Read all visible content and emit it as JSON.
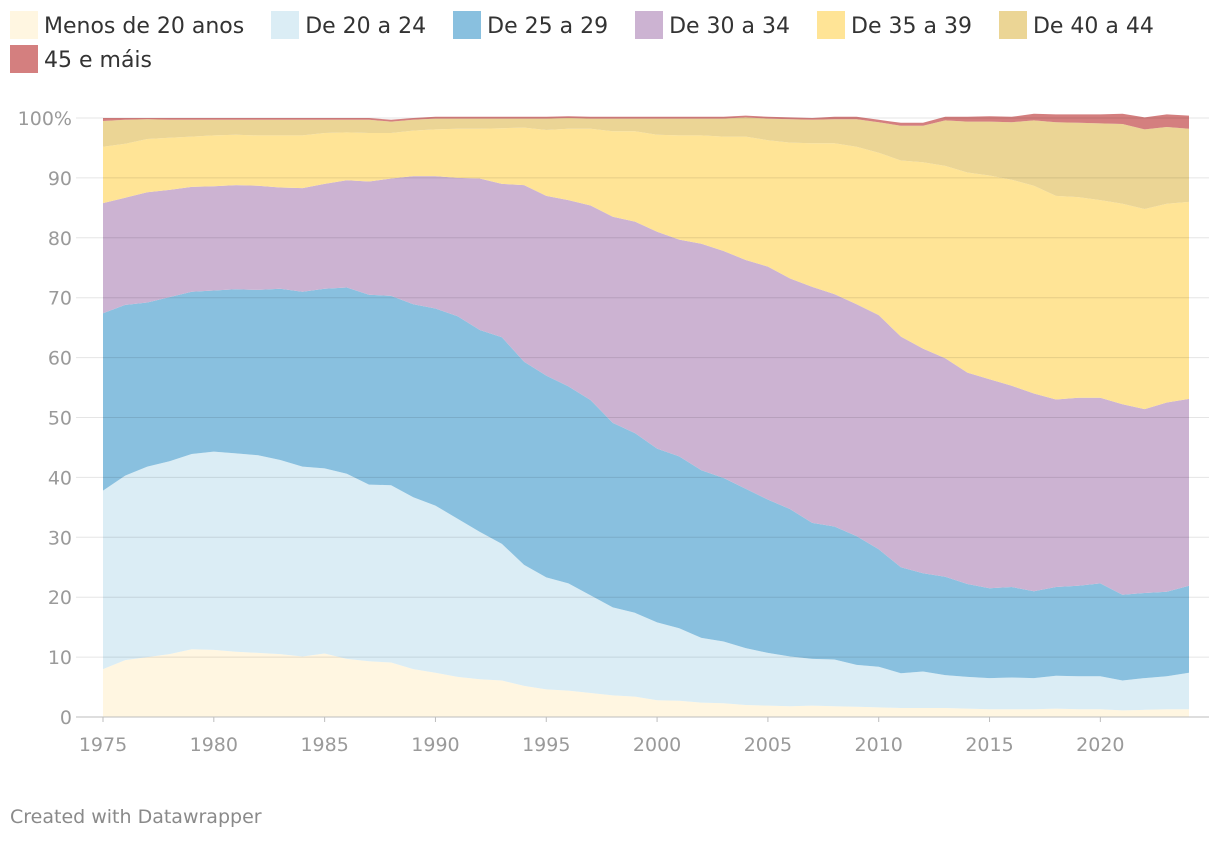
{
  "chart_data": {
    "type": "area",
    "stacked": true,
    "percent": true,
    "title": "",
    "xlabel": "",
    "ylabel": "",
    "ylim": [
      0,
      100
    ],
    "yticks": [
      0,
      10,
      20,
      30,
      40,
      50,
      60,
      70,
      80,
      90,
      100
    ],
    "ytick_labels": [
      "0",
      "10",
      "20",
      "30",
      "40",
      "50",
      "60",
      "70",
      "80",
      "90",
      "100%"
    ],
    "xticks": [
      1975,
      1980,
      1985,
      1990,
      1995,
      2000,
      2005,
      2010,
      2015,
      2020
    ],
    "xtick_labels": [
      "1975",
      "1980",
      "1985",
      "1990",
      "1995",
      "2000",
      "2005",
      "2010",
      "2015",
      "2020"
    ],
    "x": [
      1975,
      1976,
      1977,
      1978,
      1979,
      1980,
      1981,
      1982,
      1983,
      1984,
      1985,
      1986,
      1987,
      1988,
      1989,
      1990,
      1991,
      1992,
      1993,
      1994,
      1995,
      1996,
      1997,
      1998,
      1999,
      2000,
      2001,
      2002,
      2003,
      2004,
      2005,
      2006,
      2007,
      2008,
      2009,
      2010,
      2011,
      2012,
      2013,
      2014,
      2015,
      2016,
      2017,
      2018,
      2019,
      2020,
      2021,
      2022,
      2023,
      2024
    ],
    "series": [
      {
        "name": "Menos de 20 anos",
        "color": "#fff6e1",
        "values": [
          8.0,
          9.5,
          10.0,
          10.5,
          11.3,
          11.2,
          10.9,
          10.7,
          10.5,
          10.1,
          10.6,
          9.7,
          9.3,
          9.1,
          8.0,
          7.4,
          6.7,
          6.3,
          6.1,
          5.2,
          4.6,
          4.4,
          4.0,
          3.6,
          3.4,
          2.8,
          2.7,
          2.4,
          2.3,
          2.0,
          1.9,
          1.8,
          1.9,
          1.8,
          1.7,
          1.6,
          1.5,
          1.5,
          1.5,
          1.4,
          1.3,
          1.3,
          1.3,
          1.4,
          1.3,
          1.3,
          1.1,
          1.2,
          1.3,
          1.3
        ]
      },
      {
        "name": "De 20 a 24",
        "color": "#dbedf5",
        "values": [
          29.8,
          30.8,
          31.8,
          32.2,
          32.6,
          33.1,
          33.1,
          33.0,
          32.4,
          31.7,
          30.9,
          30.9,
          29.5,
          29.6,
          28.7,
          27.9,
          26.4,
          24.6,
          22.8,
          20.2,
          18.7,
          17.9,
          16.3,
          14.7,
          14.0,
          13.0,
          12.1,
          10.8,
          10.3,
          9.5,
          8.8,
          8.3,
          7.8,
          7.8,
          7.0,
          6.8,
          5.8,
          6.1,
          5.5,
          5.3,
          5.2,
          5.3,
          5.2,
          5.5,
          5.5,
          5.5,
          5.0,
          5.3,
          5.5,
          6.1
        ]
      },
      {
        "name": "De 25 a 29",
        "color": "#89c0df",
        "values": [
          29.6,
          28.5,
          27.4,
          27.4,
          27.1,
          26.9,
          27.4,
          27.6,
          28.6,
          29.2,
          30.0,
          31.1,
          31.7,
          31.6,
          32.2,
          32.9,
          33.8,
          33.7,
          34.5,
          33.9,
          33.7,
          32.9,
          32.6,
          30.8,
          30.0,
          29.0,
          28.7,
          28.0,
          27.3,
          26.6,
          25.6,
          24.6,
          22.7,
          22.2,
          21.5,
          19.6,
          17.7,
          16.4,
          16.4,
          15.5,
          15.0,
          15.1,
          14.5,
          14.8,
          15.1,
          15.5,
          14.3,
          14.2,
          14.1,
          14.5
        ]
      },
      {
        "name": "De 30 a 34",
        "color": "#ccb3d2",
        "values": [
          18.4,
          17.9,
          18.4,
          17.9,
          17.5,
          17.4,
          17.4,
          17.4,
          16.9,
          17.3,
          17.5,
          17.9,
          18.9,
          19.6,
          21.4,
          22.1,
          23.1,
          25.3,
          25.6,
          29.5,
          30.0,
          31.1,
          32.5,
          34.4,
          35.3,
          36.2,
          36.2,
          37.8,
          37.9,
          38.2,
          38.9,
          38.5,
          39.4,
          38.8,
          38.7,
          39.1,
          38.5,
          37.5,
          36.5,
          35.3,
          34.9,
          33.6,
          33.0,
          31.3,
          31.4,
          31.0,
          31.8,
          30.7,
          31.6,
          31.2
        ]
      },
      {
        "name": "De 35 a 39",
        "color": "#ffe496",
        "values": [
          9.4,
          9.0,
          8.9,
          8.7,
          8.4,
          8.5,
          8.4,
          8.4,
          8.7,
          8.8,
          8.5,
          8.0,
          8.1,
          7.6,
          7.6,
          7.8,
          8.2,
          8.3,
          9.3,
          9.6,
          11.0,
          11.9,
          12.8,
          14.3,
          15.1,
          16.2,
          17.4,
          18.1,
          19.1,
          20.6,
          21.1,
          22.7,
          24.0,
          25.2,
          26.3,
          27.1,
          29.4,
          31.1,
          32.1,
          33.4,
          34.0,
          34.4,
          34.7,
          34.0,
          33.5,
          33.0,
          33.5,
          33.4,
          33.2,
          32.9
        ]
      },
      {
        "name": "De 40 a 44",
        "color": "#ebd595",
        "values": [
          4.3,
          4.0,
          3.3,
          3.0,
          2.8,
          2.6,
          2.5,
          2.6,
          2.6,
          2.6,
          2.2,
          2.1,
          2.2,
          1.9,
          1.8,
          1.8,
          1.7,
          1.7,
          1.6,
          1.5,
          1.9,
          1.8,
          1.7,
          2.1,
          2.1,
          2.7,
          2.8,
          2.8,
          3.0,
          3.2,
          3.6,
          3.9,
          3.9,
          4.0,
          4.6,
          5.1,
          5.8,
          6.1,
          7.6,
          8.5,
          9.0,
          9.6,
          10.9,
          12.3,
          12.4,
          12.8,
          13.3,
          13.3,
          12.8,
          12.2
        ]
      },
      {
        "name": "45 e máis",
        "color": "#d47f7f",
        "values": [
          0.5,
          0.3,
          0.2,
          0.3,
          0.3,
          0.3,
          0.3,
          0.3,
          0.3,
          0.3,
          0.3,
          0.3,
          0.3,
          0.3,
          0.3,
          0.3,
          0.3,
          0.3,
          0.3,
          0.3,
          0.3,
          0.3,
          0.3,
          0.3,
          0.3,
          0.3,
          0.3,
          0.3,
          0.3,
          0.3,
          0.3,
          0.3,
          0.3,
          0.4,
          0.4,
          0.4,
          0.5,
          0.5,
          0.6,
          0.8,
          0.9,
          0.9,
          1.1,
          1.3,
          1.4,
          1.5,
          1.7,
          2.0,
          2.1,
          2.2
        ]
      }
    ]
  },
  "legend": {
    "items": [
      {
        "label": "Menos de 20 anos",
        "color": "#fff6e1"
      },
      {
        "label": "De 20 a 24",
        "color": "#dbedf5"
      },
      {
        "label": "De 25 a 29",
        "color": "#89c0df"
      },
      {
        "label": "De 30 a 34",
        "color": "#ccb3d2"
      },
      {
        "label": "De 35 a 39",
        "color": "#ffe496"
      },
      {
        "label": "De 40 a 44",
        "color": "#ebd595"
      },
      {
        "label": "45 e máis",
        "color": "#d47f7f"
      }
    ]
  },
  "footer": {
    "text": "Created with Datawrapper"
  }
}
